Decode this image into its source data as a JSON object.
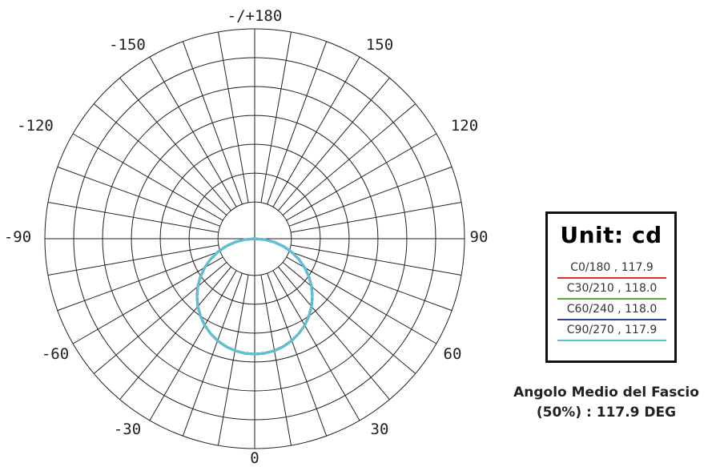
{
  "chart_data": {
    "type": "polar",
    "angle_labels": [
      "-/+180",
      "-150",
      "150",
      "-120",
      "120",
      "-90",
      "90",
      "-60",
      "60",
      "-30",
      "30",
      "0"
    ],
    "radial_rings": 7,
    "radial_divisions_deg": 10,
    "series": [
      {
        "name": "C0/180 , 117.9",
        "color": "#e0282b",
        "values_relative": [
          1.0,
          0.996,
          0.985,
          0.966,
          0.94,
          0.906,
          0.866,
          0.819,
          0.766,
          0.707,
          0.643,
          0.574,
          0.5,
          0.423,
          0.342,
          0.259,
          0.174,
          0.087,
          0.0
        ]
      },
      {
        "name": "C30/210 , 118.0",
        "color": "#5aaa3a",
        "values_relative": [
          1.0,
          0.996,
          0.985,
          0.966,
          0.94,
          0.906,
          0.866,
          0.819,
          0.766,
          0.707,
          0.643,
          0.574,
          0.5,
          0.423,
          0.342,
          0.259,
          0.174,
          0.087,
          0.0
        ]
      },
      {
        "name": "C60/240 , 118.0",
        "color": "#2e3f94",
        "values_relative": [
          1.0,
          0.996,
          0.985,
          0.966,
          0.94,
          0.906,
          0.866,
          0.819,
          0.766,
          0.707,
          0.643,
          0.574,
          0.5,
          0.423,
          0.342,
          0.259,
          0.174,
          0.087,
          0.0
        ]
      },
      {
        "name": "C90/270 , 117.9",
        "color": "#5cc2d6",
        "values_relative": [
          1.0,
          0.996,
          0.985,
          0.966,
          0.94,
          0.906,
          0.866,
          0.819,
          0.766,
          0.707,
          0.643,
          0.574,
          0.5,
          0.423,
          0.342,
          0.259,
          0.174,
          0.087,
          0.0
        ]
      }
    ],
    "series_angles_deg": [
      0,
      5,
      10,
      15,
      20,
      25,
      30,
      35,
      40,
      45,
      50,
      55,
      60,
      65,
      70,
      75,
      80,
      85,
      90
    ],
    "grid": true
  },
  "legend": {
    "title": "Unit: cd",
    "entries": [
      {
        "label": "C0/180 , 117.9",
        "color": "#e0282b"
      },
      {
        "label": "C30/210 , 118.0",
        "color": "#5aaa3a"
      },
      {
        "label": "C60/240 , 118.0",
        "color": "#2e3f94"
      },
      {
        "label": "C90/270 , 117.9",
        "color": "#5cc2d6"
      }
    ]
  },
  "caption": {
    "line1": "Angolo Medio del Fascio",
    "line2": "(50%) : 117.9 DEG"
  }
}
